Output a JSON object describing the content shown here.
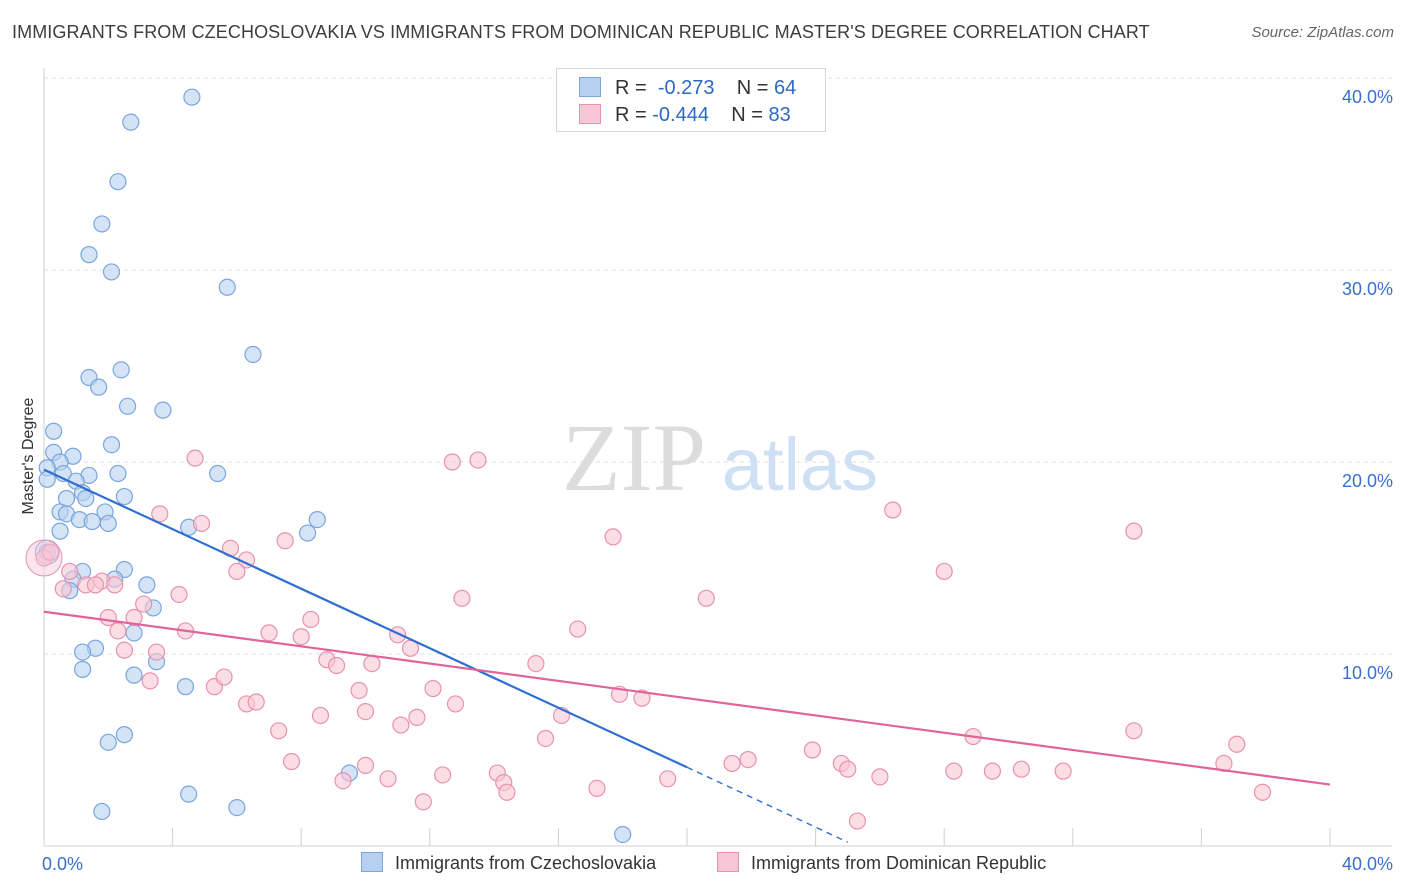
{
  "title": "IMMIGRANTS FROM CZECHOSLOVAKIA VS IMMIGRANTS FROM DOMINICAN REPUBLIC MASTER'S DEGREE CORRELATION CHART",
  "source": "Source: ZipAtlas.com",
  "watermark": {
    "zip": "ZIP",
    "atlas": "atlas"
  },
  "legend_top": [
    {
      "r_label": "R =",
      "r_value": "-0.273",
      "n_label": "N =",
      "n_value": "64"
    },
    {
      "r_label": "R =",
      "r_value": "-0.444",
      "n_label": "N =",
      "n_value": "83"
    }
  ],
  "legend_bottom": [
    "Immigrants from Czechoslovakia",
    "Immigrants from Dominican Republic"
  ],
  "colors": {
    "blue_fill": "#b8d0f0",
    "blue_stroke": "#7aa6dc",
    "blue_line": "#2f6fd0",
    "pink_fill": "#f8c6d6",
    "pink_stroke": "#e892ad",
    "pink_line": "#e0649a",
    "tick_text": "#3a70c8"
  },
  "chart_data": {
    "type": "scatter",
    "title": "IMMIGRANTS FROM CZECHOSLOVAKIA VS IMMIGRANTS FROM DOMINICAN REPUBLIC MASTER'S DEGREE CORRELATION CHART",
    "xlabel": "",
    "ylabel": "Master's Degree",
    "xlim": [
      0,
      40
    ],
    "ylim": [
      0,
      40
    ],
    "x_tick_labels": [
      "0.0%",
      "40.0%"
    ],
    "y_ticks": [
      10,
      20,
      30,
      40
    ],
    "y_tick_labels": [
      "10.0%",
      "20.0%",
      "30.0%",
      "40.0%"
    ],
    "grid": "horizontal-dashed",
    "legend_position": "bottom",
    "series": [
      {
        "name": "Immigrants from Czechoslovakia",
        "r": -0.273,
        "n": 64,
        "trend": {
          "x": [
            0,
            20
          ],
          "y": [
            19.6,
            4.1
          ],
          "dashed_extension": {
            "x": [
              20,
              25
            ],
            "y": [
              4.1,
              0.2
            ]
          }
        },
        "points": [
          [
            4.6,
            39.0
          ],
          [
            2.7,
            37.7
          ],
          [
            2.3,
            34.6
          ],
          [
            1.8,
            32.4
          ],
          [
            1.4,
            30.8
          ],
          [
            2.1,
            29.9
          ],
          [
            5.7,
            29.1
          ],
          [
            6.5,
            25.6
          ],
          [
            2.4,
            24.8
          ],
          [
            1.4,
            24.4
          ],
          [
            1.7,
            23.9
          ],
          [
            2.6,
            22.9
          ],
          [
            3.7,
            22.7
          ],
          [
            0.3,
            21.6
          ],
          [
            2.1,
            20.9
          ],
          [
            0.3,
            20.5
          ],
          [
            0.9,
            20.3
          ],
          [
            0.5,
            20.0
          ],
          [
            0.1,
            19.7
          ],
          [
            0.6,
            19.4
          ],
          [
            1.4,
            19.3
          ],
          [
            2.3,
            19.4
          ],
          [
            5.4,
            19.4
          ],
          [
            0.1,
            19.1
          ],
          [
            1.0,
            19.0
          ],
          [
            1.2,
            18.4
          ],
          [
            0.7,
            18.1
          ],
          [
            1.3,
            18.1
          ],
          [
            2.5,
            18.2
          ],
          [
            0.5,
            17.4
          ],
          [
            0.7,
            17.3
          ],
          [
            1.9,
            17.4
          ],
          [
            1.1,
            17.0
          ],
          [
            1.5,
            16.9
          ],
          [
            2.0,
            16.8
          ],
          [
            8.5,
            17.0
          ],
          [
            4.5,
            16.6
          ],
          [
            8.2,
            16.3
          ],
          [
            0.5,
            16.4
          ],
          [
            0.1,
            15.3
          ],
          [
            2.5,
            14.4
          ],
          [
            1.2,
            14.3
          ],
          [
            0.9,
            13.9
          ],
          [
            2.2,
            13.9
          ],
          [
            3.2,
            13.6
          ],
          [
            0.8,
            13.3
          ],
          [
            3.4,
            12.4
          ],
          [
            2.8,
            11.1
          ],
          [
            1.6,
            10.3
          ],
          [
            1.2,
            10.1
          ],
          [
            3.5,
            9.6
          ],
          [
            1.2,
            9.2
          ],
          [
            2.8,
            8.9
          ],
          [
            4.4,
            8.3
          ],
          [
            2.5,
            5.8
          ],
          [
            2.0,
            5.4
          ],
          [
            9.5,
            3.8
          ],
          [
            4.5,
            2.7
          ],
          [
            6.0,
            2.0
          ],
          [
            1.8,
            1.8
          ],
          [
            18.0,
            0.6
          ]
        ]
      },
      {
        "name": "Immigrants from Dominican Republic",
        "r": -0.444,
        "n": 83,
        "trend": {
          "x": [
            0,
            40
          ],
          "y": [
            12.2,
            3.2
          ]
        },
        "points": [
          [
            0.0,
            15.0
          ],
          [
            0.2,
            15.3
          ],
          [
            4.7,
            20.2
          ],
          [
            12.7,
            20.0
          ],
          [
            13.5,
            20.1
          ],
          [
            26.4,
            17.5
          ],
          [
            3.6,
            17.3
          ],
          [
            4.9,
            16.8
          ],
          [
            17.7,
            16.1
          ],
          [
            33.9,
            16.4
          ],
          [
            7.5,
            15.9
          ],
          [
            5.8,
            15.5
          ],
          [
            6.3,
            14.9
          ],
          [
            6.0,
            14.3
          ],
          [
            28.0,
            14.3
          ],
          [
            0.8,
            14.3
          ],
          [
            1.3,
            13.6
          ],
          [
            1.8,
            13.8
          ],
          [
            1.6,
            13.6
          ],
          [
            4.2,
            13.1
          ],
          [
            13.0,
            12.9
          ],
          [
            2.2,
            13.6
          ],
          [
            0.6,
            13.4
          ],
          [
            3.1,
            12.6
          ],
          [
            2.8,
            11.9
          ],
          [
            2.0,
            11.9
          ],
          [
            20.6,
            12.9
          ],
          [
            8.3,
            11.8
          ],
          [
            2.3,
            11.2
          ],
          [
            4.4,
            11.2
          ],
          [
            7.0,
            11.1
          ],
          [
            8.0,
            10.9
          ],
          [
            11.0,
            11.0
          ],
          [
            16.6,
            11.3
          ],
          [
            3.5,
            10.1
          ],
          [
            11.4,
            10.3
          ],
          [
            2.5,
            10.2
          ],
          [
            8.8,
            9.7
          ],
          [
            9.1,
            9.4
          ],
          [
            10.2,
            9.5
          ],
          [
            15.3,
            9.5
          ],
          [
            3.3,
            8.6
          ],
          [
            5.3,
            8.3
          ],
          [
            5.6,
            8.8
          ],
          [
            9.8,
            8.1
          ],
          [
            12.1,
            8.2
          ],
          [
            17.9,
            7.9
          ],
          [
            18.6,
            7.7
          ],
          [
            12.8,
            7.4
          ],
          [
            6.3,
            7.4
          ],
          [
            6.6,
            7.5
          ],
          [
            8.6,
            6.8
          ],
          [
            10.0,
            7.0
          ],
          [
            11.6,
            6.7
          ],
          [
            11.1,
            6.3
          ],
          [
            7.3,
            6.0
          ],
          [
            16.1,
            6.8
          ],
          [
            15.6,
            5.6
          ],
          [
            28.9,
            5.7
          ],
          [
            33.9,
            6.0
          ],
          [
            37.1,
            5.3
          ],
          [
            23.9,
            5.0
          ],
          [
            21.4,
            4.3
          ],
          [
            21.9,
            4.5
          ],
          [
            7.7,
            4.4
          ],
          [
            10.0,
            4.2
          ],
          [
            24.8,
            4.3
          ],
          [
            36.7,
            4.3
          ],
          [
            30.4,
            4.0
          ],
          [
            25.0,
            4.0
          ],
          [
            26.0,
            3.6
          ],
          [
            28.3,
            3.9
          ],
          [
            29.5,
            3.9
          ],
          [
            31.7,
            3.9
          ],
          [
            12.4,
            3.7
          ],
          [
            14.1,
            3.8
          ],
          [
            10.7,
            3.5
          ],
          [
            9.3,
            3.4
          ],
          [
            14.3,
            3.3
          ],
          [
            14.4,
            2.8
          ],
          [
            17.2,
            3.0
          ],
          [
            19.4,
            3.5
          ],
          [
            11.8,
            2.3
          ],
          [
            37.9,
            2.8
          ],
          [
            25.3,
            1.3
          ]
        ]
      }
    ]
  }
}
